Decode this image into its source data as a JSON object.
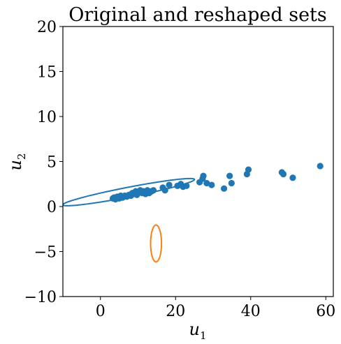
{
  "chart_data": {
    "type": "scatter",
    "title": "Original and reshaped sets",
    "xlabel": "u",
    "xlabel_sub": "1",
    "ylabel": "u",
    "ylabel_sub": "2",
    "xlim": [
      -10,
      62
    ],
    "ylim": [
      -10,
      20
    ],
    "xticks": [
      0,
      20,
      40,
      60
    ],
    "yticks": [
      -10,
      -5,
      0,
      5,
      10,
      15,
      20
    ],
    "xtick_labels": [
      "0",
      "20",
      "40",
      "60"
    ],
    "ytick_labels": [
      "−10",
      "−5",
      "0",
      "5",
      "10",
      "15",
      "20"
    ],
    "grid": false,
    "colors": {
      "points": "#1f77b4",
      "original_set": "#1f77b4",
      "reshaped_set": "#ff7f0e"
    },
    "points": [
      [
        3.3,
        0.9
      ],
      [
        3.6,
        1.0
      ],
      [
        4.0,
        0.8
      ],
      [
        4.5,
        1.1
      ],
      [
        5.0,
        0.9
      ],
      [
        5.4,
        1.2
      ],
      [
        5.9,
        1.0
      ],
      [
        6.5,
        1.2
      ],
      [
        7.0,
        1.1
      ],
      [
        7.6,
        1.3
      ],
      [
        8.1,
        1.2
      ],
      [
        8.5,
        1.5
      ],
      [
        9.0,
        1.4
      ],
      [
        9.4,
        1.7
      ],
      [
        9.7,
        1.3
      ],
      [
        10.2,
        1.6
      ],
      [
        10.6,
        1.8
      ],
      [
        11.1,
        1.5
      ],
      [
        11.5,
        1.7
      ],
      [
        12.0,
        1.4
      ],
      [
        12.5,
        1.8
      ],
      [
        13.0,
        1.5
      ],
      [
        13.6,
        1.7
      ],
      [
        14.1,
        1.8
      ],
      [
        16.6,
        2.1
      ],
      [
        17.2,
        1.8
      ],
      [
        18.3,
        2.4
      ],
      [
        20.5,
        2.3
      ],
      [
        21.4,
        2.5
      ],
      [
        22.0,
        2.2
      ],
      [
        22.9,
        2.3
      ],
      [
        26.4,
        2.7
      ],
      [
        27.2,
        3.1
      ],
      [
        27.4,
        3.4
      ],
      [
        28.3,
        2.6
      ],
      [
        29.6,
        2.4
      ],
      [
        32.9,
        2.0
      ],
      [
        34.4,
        3.4
      ],
      [
        34.9,
        2.6
      ],
      [
        39.0,
        3.6
      ],
      [
        39.4,
        4.1
      ],
      [
        48.3,
        3.8
      ],
      [
        48.7,
        3.6
      ],
      [
        51.2,
        3.2
      ],
      [
        58.5,
        4.5
      ]
    ],
    "original_set": {
      "type": "ellipse",
      "center": [
        7.5,
        1.6
      ],
      "semi_axes": [
        17.6,
        0.55
      ],
      "rotation_deg": 4.6
    },
    "reshaped_set": {
      "type": "ellipse",
      "center": [
        14.8,
        -4.1
      ],
      "semi_axes": [
        1.45,
        2.05
      ],
      "rotation_deg": 0
    }
  }
}
